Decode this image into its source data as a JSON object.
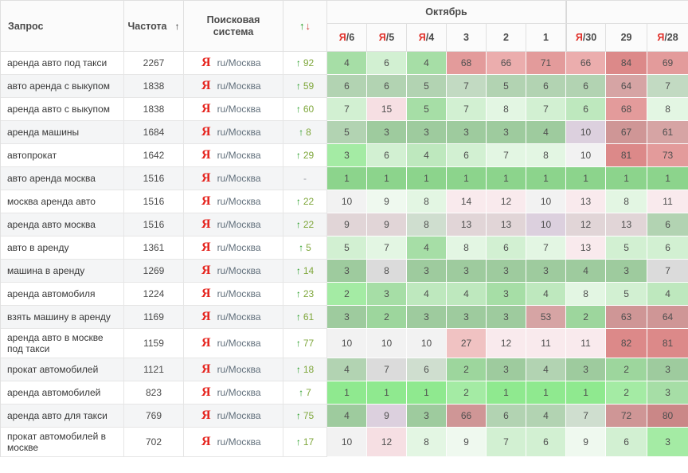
{
  "header": {
    "query": "Запрос",
    "frequency": "Частота",
    "frequency_sort_icon": "↑",
    "search_engine": "Поисковая система",
    "change_up_icon": "↑",
    "change_down_icon": "↓",
    "month_group": "Октябрь",
    "month_group_right": "",
    "dates": [
      {
        "ya": true,
        "day": "6"
      },
      {
        "ya": true,
        "day": "5"
      },
      {
        "ya": true,
        "day": "4"
      },
      {
        "ya": false,
        "day": "3"
      },
      {
        "ya": false,
        "day": "2"
      },
      {
        "ya": false,
        "day": "1"
      },
      {
        "ya": true,
        "day": "30"
      },
      {
        "ya": false,
        "day": "29"
      },
      {
        "ya": true,
        "day": "28"
      }
    ]
  },
  "engine": {
    "icon": "Я",
    "region": "ru/Москва"
  },
  "glyphs": {
    "up_arrow": "↑",
    "no_change": "-"
  },
  "colors": {
    "yandex_red": "#E5231D",
    "date_marker_red": "#E0302A",
    "change_arrow_green": "#1F9A1F",
    "change_value_green": "#7FA73C",
    "palette": {
      "G1": "#8FE98F",
      "G15": "#A4EBA4",
      "G2": "#A6DEA6",
      "G3": "#BEE8BE",
      "G4": "#D2F0D2",
      "G5": "#E3F6E3",
      "G6": "#EFF9EF",
      "W": "#F2F2F2",
      "LAV": "#F3E4F6",
      "P1": "#F9EAED",
      "P2": "#F6DFE3",
      "P3": "#F0C2C2",
      "R1": "#EBADAD",
      "R2": "#E39B9B",
      "R3": "#DC8989"
    }
  },
  "rows": [
    {
      "query": "аренда авто под такси",
      "frequency": "2267",
      "change": "92",
      "positions": [
        [
          4,
          "G2"
        ],
        [
          6,
          "G4"
        ],
        [
          4,
          "G2"
        ],
        [
          68,
          "R2"
        ],
        [
          66,
          "R1"
        ],
        [
          71,
          "R2"
        ],
        [
          66,
          "R1"
        ],
        [
          84,
          "R3"
        ],
        [
          69,
          "R2"
        ]
      ]
    },
    {
      "query": "авто аренда с выкупом",
      "frequency": "1838",
      "change": "59",
      "positions": [
        [
          6,
          "G3"
        ],
        [
          6,
          "G3"
        ],
        [
          5,
          "G3"
        ],
        [
          7,
          "G4"
        ],
        [
          5,
          "G3"
        ],
        [
          6,
          "G3"
        ],
        [
          6,
          "G3"
        ],
        [
          64,
          "R1"
        ],
        [
          7,
          "G4"
        ]
      ]
    },
    {
      "query": "аренда авто с выкупом",
      "frequency": "1838",
      "change": "60",
      "positions": [
        [
          7,
          "G4"
        ],
        [
          15,
          "P2"
        ],
        [
          5,
          "G2"
        ],
        [
          7,
          "G4"
        ],
        [
          8,
          "G5"
        ],
        [
          7,
          "G4"
        ],
        [
          6,
          "G3"
        ],
        [
          68,
          "R2"
        ],
        [
          8,
          "G5"
        ]
      ]
    },
    {
      "query": "аренда машины",
      "frequency": "1684",
      "change": "8",
      "positions": [
        [
          5,
          "G3"
        ],
        [
          3,
          "G2"
        ],
        [
          3,
          "G2"
        ],
        [
          3,
          "G2"
        ],
        [
          3,
          "G2"
        ],
        [
          4,
          "G2"
        ],
        [
          10,
          "LAV"
        ],
        [
          67,
          "R2"
        ],
        [
          61,
          "R1"
        ]
      ]
    },
    {
      "query": "автопрокат",
      "frequency": "1642",
      "change": "29",
      "positions": [
        [
          3,
          "G15"
        ],
        [
          6,
          "G4"
        ],
        [
          4,
          "G3"
        ],
        [
          6,
          "G4"
        ],
        [
          7,
          "G5"
        ],
        [
          8,
          "G5"
        ],
        [
          10,
          "W"
        ],
        [
          81,
          "R3"
        ],
        [
          73,
          "R2"
        ]
      ]
    },
    {
      "query": "авто аренда москва",
      "frequency": "1516",
      "change": "-",
      "positions": [
        [
          1,
          "G1"
        ],
        [
          1,
          "G1"
        ],
        [
          1,
          "G1"
        ],
        [
          1,
          "G1"
        ],
        [
          1,
          "G1"
        ],
        [
          1,
          "G1"
        ],
        [
          1,
          "G1"
        ],
        [
          1,
          "G1"
        ],
        [
          1,
          "G1"
        ]
      ]
    },
    {
      "query": "москва аренда авто",
      "frequency": "1516",
      "change": "22",
      "positions": [
        [
          10,
          "W"
        ],
        [
          9,
          "G6"
        ],
        [
          8,
          "G5"
        ],
        [
          14,
          "P1"
        ],
        [
          12,
          "P1"
        ],
        [
          10,
          "W"
        ],
        [
          13,
          "P1"
        ],
        [
          8,
          "G5"
        ],
        [
          11,
          "P1"
        ]
      ]
    },
    {
      "query": "аренда авто москва",
      "frequency": "1516",
      "change": "22",
      "positions": [
        [
          9,
          "P1"
        ],
        [
          9,
          "P1"
        ],
        [
          8,
          "G5"
        ],
        [
          13,
          "P1"
        ],
        [
          13,
          "P1"
        ],
        [
          10,
          "LAV"
        ],
        [
          12,
          "P1"
        ],
        [
          13,
          "P1"
        ],
        [
          6,
          "G3"
        ]
      ]
    },
    {
      "query": "авто в аренду",
      "frequency": "1361",
      "change": "5",
      "positions": [
        [
          5,
          "G4"
        ],
        [
          7,
          "G5"
        ],
        [
          4,
          "G2"
        ],
        [
          8,
          "G5"
        ],
        [
          6,
          "G4"
        ],
        [
          7,
          "G5"
        ],
        [
          13,
          "P1"
        ],
        [
          5,
          "G4"
        ],
        [
          6,
          "G4"
        ]
      ]
    },
    {
      "query": "машина в аренду",
      "frequency": "1269",
      "change": "14",
      "positions": [
        [
          3,
          "G2"
        ],
        [
          8,
          "W"
        ],
        [
          3,
          "G2"
        ],
        [
          3,
          "G2"
        ],
        [
          3,
          "G2"
        ],
        [
          3,
          "G2"
        ],
        [
          4,
          "G2"
        ],
        [
          3,
          "G2"
        ],
        [
          7,
          "W"
        ]
      ]
    },
    {
      "query": "аренда автомобиля",
      "frequency": "1224",
      "change": "23",
      "positions": [
        [
          2,
          "G15"
        ],
        [
          3,
          "G2"
        ],
        [
          4,
          "G3"
        ],
        [
          4,
          "G3"
        ],
        [
          3,
          "G2"
        ],
        [
          4,
          "G3"
        ],
        [
          8,
          "G5"
        ],
        [
          5,
          "G4"
        ],
        [
          4,
          "G3"
        ]
      ]
    },
    {
      "query": "взять машину в аренду",
      "frequency": "1169",
      "change": "61",
      "positions": [
        [
          3,
          "G2"
        ],
        [
          2,
          "G15"
        ],
        [
          3,
          "G2"
        ],
        [
          3,
          "G2"
        ],
        [
          3,
          "G2"
        ],
        [
          53,
          "R1"
        ],
        [
          2,
          "G15"
        ],
        [
          63,
          "R2"
        ],
        [
          64,
          "R2"
        ]
      ]
    },
    {
      "query": "аренда авто в москве под такси",
      "frequency": "1159",
      "change": "77",
      "positions": [
        [
          10,
          "W"
        ],
        [
          10,
          "W"
        ],
        [
          10,
          "W"
        ],
        [
          27,
          "P3"
        ],
        [
          12,
          "P1"
        ],
        [
          11,
          "P1"
        ],
        [
          11,
          "P1"
        ],
        [
          82,
          "R3"
        ],
        [
          81,
          "R3"
        ]
      ]
    },
    {
      "query": "прокат автомобилей",
      "frequency": "1121",
      "change": "18",
      "positions": [
        [
          4,
          "G3"
        ],
        [
          7,
          "W"
        ],
        [
          6,
          "G5"
        ],
        [
          2,
          "G15"
        ],
        [
          3,
          "G2"
        ],
        [
          4,
          "G3"
        ],
        [
          3,
          "G2"
        ],
        [
          2,
          "G15"
        ],
        [
          3,
          "G2"
        ]
      ]
    },
    {
      "query": "аренда автомобилей",
      "frequency": "823",
      "change": "7",
      "positions": [
        [
          1,
          "G1"
        ],
        [
          1,
          "G1"
        ],
        [
          1,
          "G1"
        ],
        [
          2,
          "G15"
        ],
        [
          1,
          "G1"
        ],
        [
          1,
          "G1"
        ],
        [
          1,
          "G1"
        ],
        [
          2,
          "G15"
        ],
        [
          3,
          "G2"
        ]
      ]
    },
    {
      "query": "аренда авто для такси",
      "frequency": "769",
      "change": "75",
      "positions": [
        [
          4,
          "G2"
        ],
        [
          9,
          "LAV"
        ],
        [
          3,
          "G2"
        ],
        [
          66,
          "R2"
        ],
        [
          6,
          "G3"
        ],
        [
          4,
          "G3"
        ],
        [
          7,
          "G5"
        ],
        [
          72,
          "R2"
        ],
        [
          80,
          "R3"
        ]
      ]
    },
    {
      "query": "прокат автомобилей в москве",
      "frequency": "702",
      "change": "17",
      "positions": [
        [
          10,
          "W"
        ],
        [
          12,
          "P2"
        ],
        [
          8,
          "G5"
        ],
        [
          9,
          "G6"
        ],
        [
          7,
          "G4"
        ],
        [
          6,
          "G4"
        ],
        [
          9,
          "G6"
        ],
        [
          6,
          "G4"
        ],
        [
          3,
          "G15"
        ]
      ]
    }
  ]
}
